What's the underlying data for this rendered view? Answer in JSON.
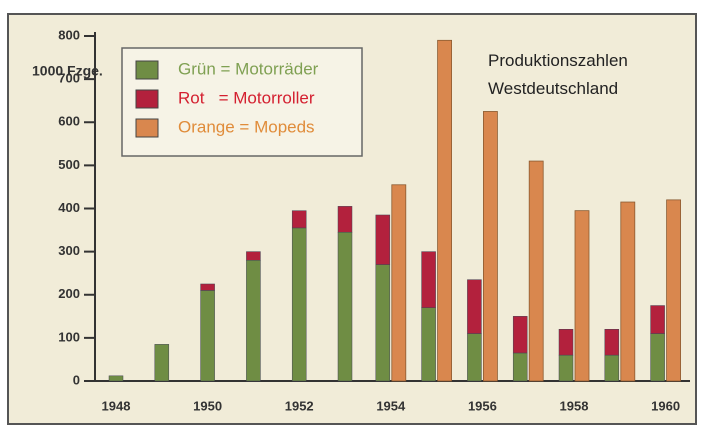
{
  "chart_data": {
    "type": "grouped-stacked-bar",
    "title": "Produktionszahlen Westdeutschland",
    "y_label": "1000 Fzge.",
    "categories": [
      "1948",
      null,
      "1950",
      null,
      "1952",
      null,
      "1954",
      null,
      "1956",
      null,
      "1958",
      null,
      "1960"
    ],
    "series": [
      {
        "name": "Grün = Motorräder",
        "color": "#6f8d44",
        "stack": "a",
        "values": [
          12,
          85,
          210,
          280,
          355,
          345,
          270,
          170,
          110,
          65,
          60,
          60,
          110
        ]
      },
      {
        "name": "Rot   = Motorroller",
        "color": "#b3213d",
        "stack": "a",
        "values": [
          0,
          0,
          15,
          20,
          40,
          60,
          115,
          130,
          125,
          85,
          60,
          60,
          65
        ]
      },
      {
        "name": "Orange = Mopeds",
        "color": "#d9874e",
        "stack": "b",
        "values": [
          0,
          0,
          0,
          0,
          0,
          0,
          455,
          790,
          625,
          510,
          395,
          415,
          420
        ]
      }
    ],
    "ylim": [
      0,
      800
    ],
    "yticks": [
      0,
      100,
      200,
      300,
      400,
      500,
      600,
      700,
      800
    ]
  }
}
